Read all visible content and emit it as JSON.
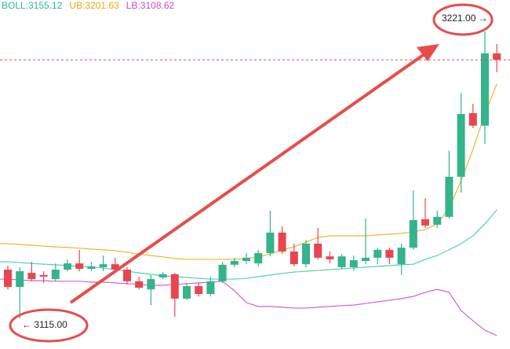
{
  "chart_data": {
    "type": "candlestick",
    "up_color": "#33b48a",
    "down_color": "#e8464f",
    "open": [
      3133.0,
      3126.6,
      3131.8,
      3131.0,
      3129.5,
      3133.0,
      3135.3,
      3133.3,
      3133.9,
      3135.0,
      3133.0,
      3128.7,
      3125.7,
      3130.1,
      3131.3,
      3122.3,
      3126.9,
      3124.0,
      3128.7,
      3134.8,
      3136.2,
      3135.3,
      3139.1,
      3146.7,
      3139.7,
      3135.0,
      3142.6,
      3137.9,
      3133.9,
      3133.9,
      3136.2,
      3137.4,
      3140.3,
      3135.0,
      3141.1,
      3151.6,
      3149.6,
      3152.5,
      3167.3,
      3190.8,
      3186.2,
      3212.9
    ],
    "high": [
      3134.5,
      3133.9,
      3135.9,
      3132.4,
      3135.3,
      3136.8,
      3140.3,
      3135.9,
      3138.2,
      3137.4,
      3133.9,
      3130.4,
      3131.0,
      3132.1,
      3131.8,
      3128.1,
      3128.1,
      3130.4,
      3135.9,
      3137.4,
      3139.1,
      3140.3,
      3154.8,
      3149.0,
      3142.6,
      3144.0,
      3148.4,
      3139.7,
      3138.8,
      3138.2,
      3151.9,
      3141.1,
      3141.1,
      3142.6,
      3162.3,
      3159.4,
      3154.8,
      3176.9,
      3198.3,
      3194.3,
      3221.0,
      3216.4
    ],
    "low": [
      3125.7,
      3115.0,
      3128.7,
      3128.1,
      3128.7,
      3132.4,
      3132.4,
      3132.4,
      3132.4,
      3131.8,
      3127.5,
      3125.7,
      3119.9,
      3129.5,
      3115.6,
      3121.7,
      3123.1,
      3123.1,
      3128.1,
      3133.9,
      3135.0,
      3134.2,
      3137.9,
      3138.8,
      3134.2,
      3133.9,
      3136.8,
      3135.3,
      3133.3,
      3132.7,
      3135.0,
      3135.0,
      3135.0,
      3131.0,
      3140.3,
      3148.4,
      3148.4,
      3151.9,
      3161.5,
      3185.3,
      3179.5,
      3205.9
    ],
    "close": [
      3126.6,
      3132.4,
      3129.5,
      3130.4,
      3133.0,
      3135.3,
      3133.3,
      3134.2,
      3135.0,
      3133.0,
      3128.7,
      3126.3,
      3129.5,
      3131.3,
      3122.3,
      3126.9,
      3124.0,
      3128.7,
      3134.8,
      3136.2,
      3137.4,
      3139.1,
      3146.7,
      3139.7,
      3135.0,
      3142.6,
      3137.4,
      3136.8,
      3137.9,
      3136.5,
      3137.4,
      3140.3,
      3137.4,
      3141.1,
      3151.3,
      3149.3,
      3152.5,
      3167.3,
      3190.5,
      3186.2,
      3212.9,
      3210.5
    ],
    "bands": [
      {
        "label": "BOLL:3155.12",
        "color": "#27b89a",
        "line_color": "#4fd3ad",
        "values": [
          3135.9,
          3135.6,
          3135.3,
          3135.0,
          3134.8,
          3134.5,
          3134.2,
          3133.9,
          3133.6,
          3133.0,
          3132.4,
          3131.8,
          3131.3,
          3130.7,
          3130.4,
          3130.1,
          3129.8,
          3129.5,
          3129.5,
          3129.5,
          3129.8,
          3130.4,
          3131.0,
          3131.6,
          3132.1,
          3132.4,
          3132.7,
          3133.0,
          3133.3,
          3133.6,
          3133.9,
          3134.2,
          3134.5,
          3134.8,
          3135.0,
          3136.8,
          3138.2,
          3140.3,
          3142.6,
          3145.5,
          3149.9,
          3155.12
        ]
      },
      {
        "label": "UB:3201.63",
        "color": "#e8a60f",
        "line_color": "#f0b429",
        "values": [
          3142.6,
          3142.3,
          3142.0,
          3141.7,
          3141.4,
          3141.2,
          3140.9,
          3140.6,
          3140.3,
          3140.0,
          3139.4,
          3138.8,
          3138.2,
          3137.7,
          3137.1,
          3136.8,
          3136.8,
          3136.8,
          3136.8,
          3136.8,
          3137.1,
          3137.7,
          3138.8,
          3140.3,
          3141.4,
          3143.2,
          3144.9,
          3145.5,
          3145.5,
          3145.5,
          3145.5,
          3145.8,
          3146.1,
          3146.4,
          3147.0,
          3147.8,
          3149.9,
          3155.7,
          3165.8,
          3177.4,
          3190.5,
          3201.63
        ]
      },
      {
        "label": "LB:3108.62",
        "color": "#c94bc6",
        "line_color": "#d65fd0",
        "values": [
          3129.5,
          3129.2,
          3128.9,
          3128.9,
          3128.7,
          3128.7,
          3128.7,
          3128.4,
          3128.4,
          3128.1,
          3127.8,
          3127.5,
          3127.2,
          3127.2,
          3127.5,
          3127.8,
          3128.1,
          3128.4,
          3128.7,
          3125.2,
          3120.8,
          3119.4,
          3119.4,
          3119.1,
          3118.8,
          3118.8,
          3119.1,
          3119.4,
          3119.7,
          3119.9,
          3120.5,
          3121.1,
          3121.7,
          3122.3,
          3123.1,
          3124.6,
          3125.7,
          3124.6,
          3117.9,
          3114.1,
          3110.6,
          3108.62
        ]
      }
    ],
    "annotations": {
      "high_label": "3221.00 →",
      "low_label": "← 3115.00"
    }
  }
}
